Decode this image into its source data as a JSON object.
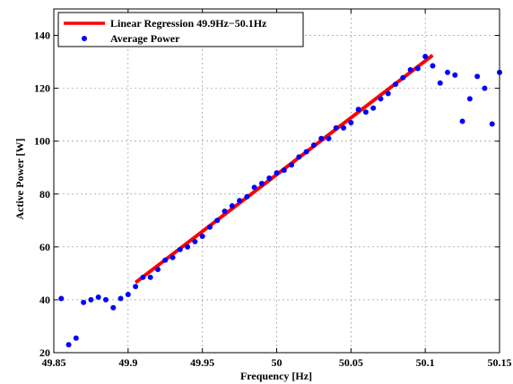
{
  "chart_data": {
    "type": "scatter",
    "xlabel": "Frequency [Hz]",
    "ylabel": "Active Power [W]",
    "xlim": [
      49.85,
      50.15
    ],
    "ylim": [
      20,
      150
    ],
    "xticks": [
      49.85,
      49.9,
      49.95,
      50,
      50.05,
      50.1,
      50.15
    ],
    "xtick_labels": [
      "49.85",
      "49.9",
      "49.95",
      "50",
      "50.05",
      "50.1",
      "50.15"
    ],
    "yticks": [
      20,
      40,
      60,
      80,
      100,
      120,
      140
    ],
    "ytick_labels": [
      "20",
      "40",
      "60",
      "80",
      "100",
      "120",
      "140"
    ],
    "grid": true,
    "legend_position": "top-left",
    "series": [
      {
        "name": "Linear Regression 49.9Hz−50.1Hz",
        "kind": "line",
        "color": "#ff0000",
        "x": [
          49.905,
          50.105
        ],
        "y": [
          46.5,
          132.5
        ]
      },
      {
        "name": "Average Power",
        "kind": "scatter",
        "color": "#0000ff",
        "x": [
          49.855,
          49.86,
          49.865,
          49.87,
          49.875,
          49.88,
          49.885,
          49.89,
          49.895,
          49.9,
          49.905,
          49.91,
          49.915,
          49.92,
          49.925,
          49.93,
          49.935,
          49.94,
          49.945,
          49.95,
          49.955,
          49.96,
          49.965,
          49.97,
          49.975,
          49.98,
          49.985,
          49.99,
          49.995,
          50.0,
          50.005,
          50.01,
          50.015,
          50.02,
          50.025,
          50.03,
          50.035,
          50.04,
          50.045,
          50.05,
          50.055,
          50.06,
          50.065,
          50.07,
          50.075,
          50.08,
          50.085,
          50.09,
          50.095,
          50.1,
          50.105,
          50.11,
          50.115,
          50.12,
          50.125,
          50.13,
          50.135,
          50.14,
          50.145,
          50.15
        ],
        "y": [
          40.5,
          23,
          25.5,
          39,
          40,
          41,
          40,
          37,
          40.5,
          42,
          45,
          48.5,
          48.5,
          51.5,
          55,
          56,
          59,
          60,
          62,
          64,
          67.5,
          70,
          73.5,
          75.5,
          77.5,
          79,
          82.5,
          84,
          86,
          88,
          89,
          91,
          94,
          96,
          98.5,
          101,
          101,
          105,
          105,
          107,
          112,
          111,
          112.5,
          116,
          118,
          121.5,
          124,
          127,
          127.5,
          132,
          128.5,
          122,
          126,
          125,
          107.5,
          116,
          124.5,
          120,
          106.5,
          126
        ]
      }
    ]
  }
}
